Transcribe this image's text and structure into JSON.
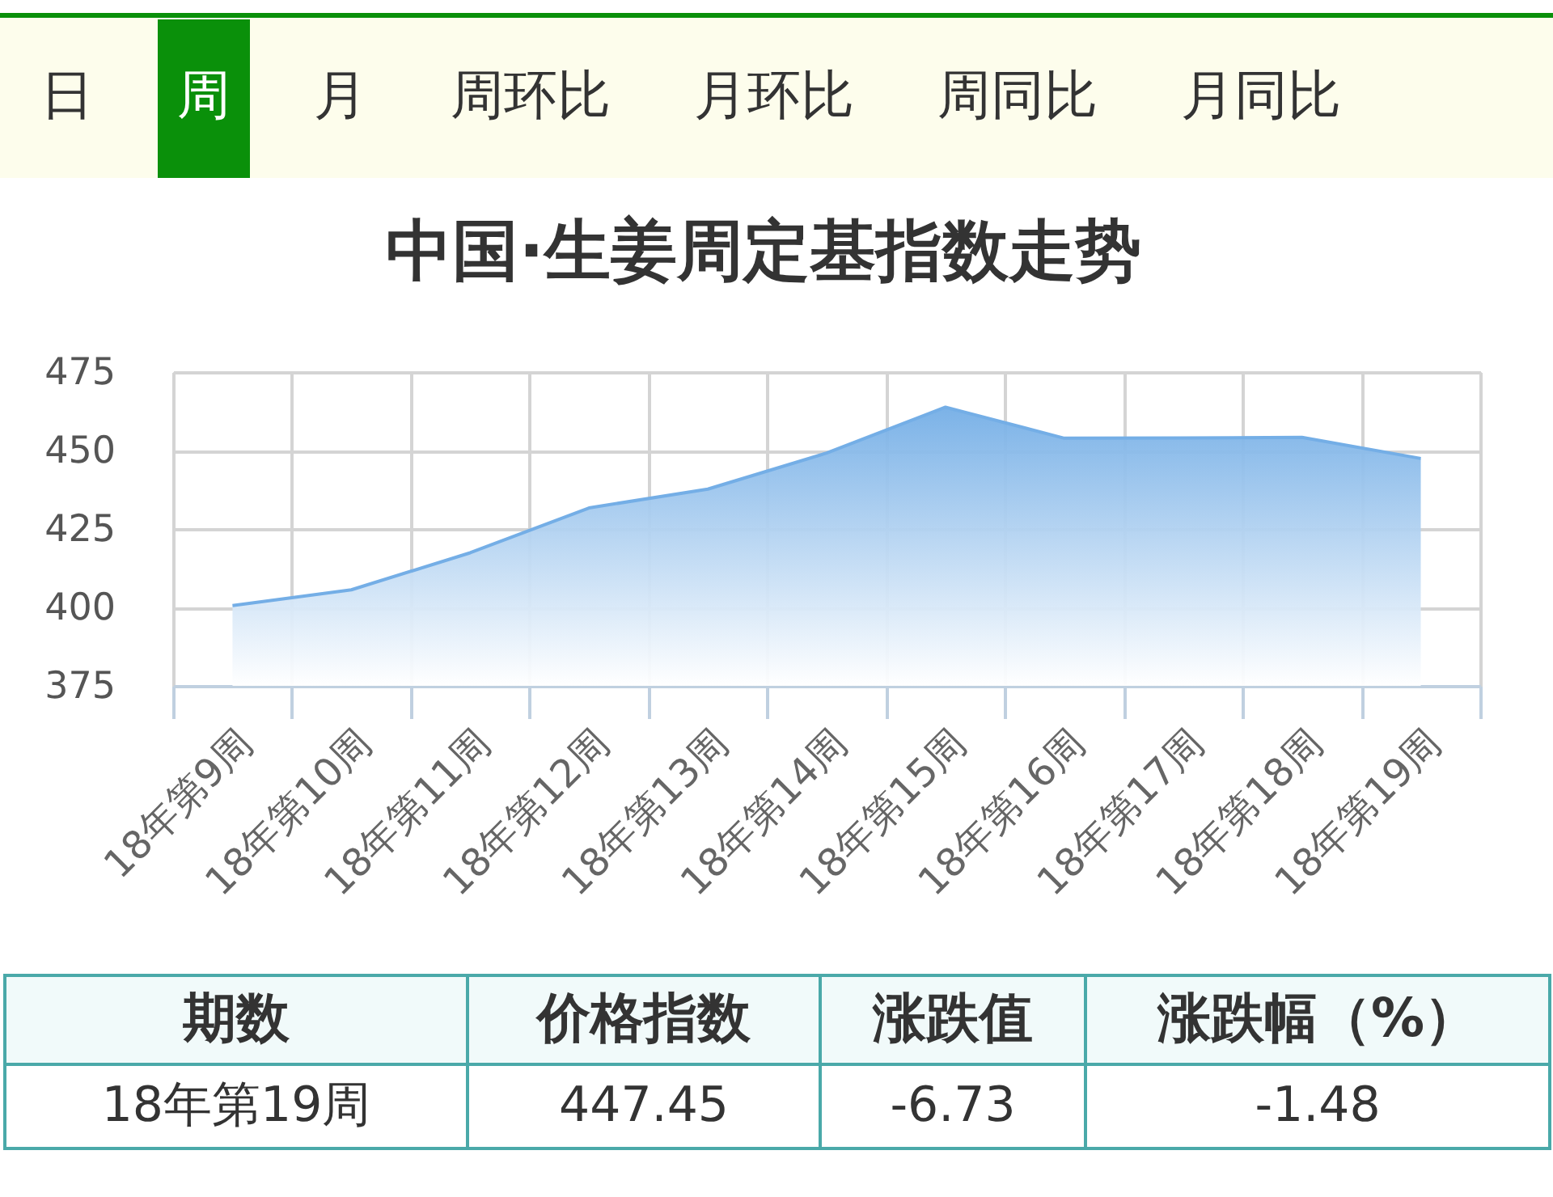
{
  "chart_data": [
    {
      "type": "other",
      "categories": [
        "日",
        "周",
        "月",
        "周环比",
        "月环比",
        "周同比",
        "月同比"
      ],
      "colors": [
        "#fdfdec",
        "#0a900a",
        "#fdfdec",
        "#fdfdec",
        "#fdfdec",
        "#fdfdec",
        "#fdfdec"
      ]
    },
    {
      "type": "area",
      "title": "中国·生姜周定基指数走势",
      "categories": [
        "18年第9周",
        "18年第10周",
        "18年第11周",
        "18年第12周",
        "18年第13周",
        "18年第14周",
        "18年第15周",
        "18年第16周",
        "18年第17周",
        "18年第18周",
        "18年第19周"
      ],
      "values": [
        400.6,
        405.6,
        417.4,
        431.7,
        437.7,
        449.2,
        463.8,
        453.9,
        454.0,
        454.2,
        447.45
      ],
      "color": "#74aee6",
      "ylim": [
        375,
        475
      ],
      "yticks": [
        375,
        400,
        425,
        450,
        475
      ],
      "grid": true
    },
    {
      "type": "other",
      "categories": [
        "期数",
        "价格指数",
        "涨跌值",
        "涨跌幅（%）"
      ],
      "annotations": [
        "18年第19周",
        "447.45",
        "-6.73",
        "-1.48"
      ]
    }
  ]
}
